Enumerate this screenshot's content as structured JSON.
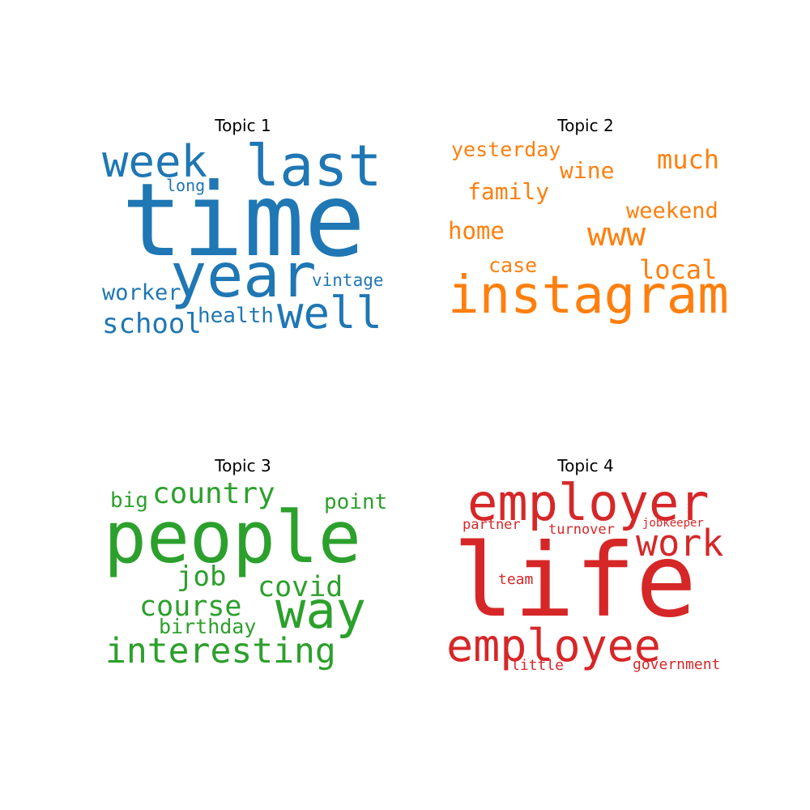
{
  "topics": [
    {
      "title": "Topic 1",
      "color": "#1f77b4",
      "words": [
        "time",
        "last",
        "year",
        "week",
        "well",
        "school",
        "worker",
        "health",
        "vintage",
        "long"
      ]
    },
    {
      "title": "Topic 2",
      "color": "#ff7f0e",
      "words": [
        "instagram",
        "www",
        "much",
        "yesterday",
        "wine",
        "family",
        "weekend",
        "home",
        "local",
        "case"
      ]
    },
    {
      "title": "Topic 3",
      "color": "#2ca02c",
      "words": [
        "people",
        "way",
        "interesting",
        "country",
        "course",
        "covid",
        "job",
        "birthday",
        "point",
        "big"
      ]
    },
    {
      "title": "Topic 4",
      "color": "#d62728",
      "words": [
        "life",
        "employer",
        "employee",
        "work",
        "partner",
        "turnover",
        "jobkeeper",
        "team",
        "little",
        "government"
      ]
    }
  ]
}
